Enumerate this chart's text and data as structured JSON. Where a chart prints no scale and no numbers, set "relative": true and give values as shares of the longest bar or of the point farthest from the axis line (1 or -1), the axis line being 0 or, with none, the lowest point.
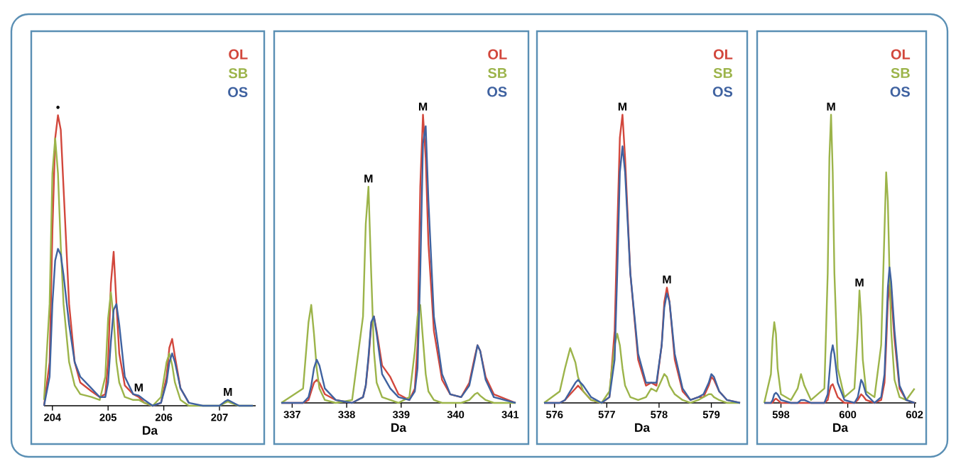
{
  "chart_data": [
    {
      "type": "line",
      "relative": true,
      "xlabel": "Da",
      "legend": "top right",
      "xlim": [
        203.85,
        207.65
      ],
      "xticks": [
        204,
        205,
        206,
        207
      ],
      "x": [
        203.85,
        203.95,
        204.0,
        204.05,
        204.1,
        204.15,
        204.2,
        204.3,
        204.4,
        204.5,
        204.7,
        204.85,
        204.95,
        205.0,
        205.05,
        205.1,
        205.15,
        205.2,
        205.3,
        205.45,
        205.55,
        205.65,
        205.8,
        205.95,
        206.05,
        206.1,
        206.15,
        206.2,
        206.3,
        206.45,
        206.7,
        207.0,
        207.1,
        207.15,
        207.2,
        207.35,
        207.6
      ],
      "series": [
        {
          "name": "OL",
          "color": "#d2473c",
          "values": [
            0,
            0.15,
            0.6,
            0.92,
            1.0,
            0.95,
            0.75,
            0.35,
            0.15,
            0.08,
            0.05,
            0.03,
            0.04,
            0.15,
            0.42,
            0.53,
            0.35,
            0.18,
            0.07,
            0.04,
            0.03,
            0.01,
            0,
            0.01,
            0.1,
            0.2,
            0.23,
            0.17,
            0.06,
            0.01,
            null,
            null,
            null,
            null,
            null,
            null,
            null
          ]
        },
        {
          "name": "SB",
          "color": "#9cb44a",
          "values": [
            0.02,
            0.35,
            0.8,
            0.92,
            0.8,
            0.55,
            0.35,
            0.15,
            0.07,
            0.04,
            0.03,
            0.02,
            0.1,
            0.3,
            0.39,
            0.3,
            0.15,
            0.08,
            0.03,
            0.02,
            0.02,
            0.01,
            0,
            0.03,
            0.15,
            0.18,
            0.14,
            0.08,
            0.02,
            0,
            0,
            0,
            0.01,
            0.015,
            0.01,
            0,
            0
          ]
        },
        {
          "name": "OS",
          "color": "#3f62a0",
          "values": [
            0,
            0.1,
            0.35,
            0.5,
            0.54,
            0.52,
            0.45,
            0.28,
            0.15,
            0.1,
            0.06,
            0.03,
            0.03,
            0.08,
            0.22,
            0.33,
            0.35,
            0.28,
            0.1,
            0.04,
            0.035,
            0.02,
            0,
            0.01,
            0.08,
            0.15,
            0.18,
            0.15,
            0.06,
            0.01,
            0,
            0,
            0.015,
            0.02,
            0.015,
            0,
            0
          ]
        }
      ],
      "annotations": [
        {
          "text": "•",
          "x": 204.1,
          "y": 1.0
        },
        {
          "text": "M",
          "x": 205.55,
          "y": 0.035
        },
        {
          "text": "M",
          "x": 207.15,
          "y": 0.02
        }
      ]
    },
    {
      "type": "line",
      "relative": true,
      "xlabel": "Da",
      "legend": "top right",
      "xlim": [
        336.8,
        341.1
      ],
      "xticks": [
        337,
        338,
        339,
        340,
        341
      ],
      "x": [
        336.8,
        337.2,
        337.3,
        337.35,
        337.4,
        337.45,
        337.5,
        337.6,
        337.8,
        338.1,
        338.3,
        338.35,
        338.4,
        338.45,
        338.5,
        338.55,
        338.65,
        338.8,
        338.95,
        339.15,
        339.25,
        339.3,
        339.35,
        339.4,
        339.45,
        339.5,
        339.6,
        339.75,
        339.9,
        340.1,
        340.25,
        340.35,
        340.4,
        340.45,
        340.55,
        340.7,
        341.1
      ],
      "series": [
        {
          "name": "OL",
          "color": "#d2473c",
          "values": [
            0,
            0,
            0.01,
            0.04,
            0.07,
            0.08,
            0.07,
            0.03,
            0.01,
            0,
            0.02,
            0.06,
            0.15,
            0.27,
            0.3,
            0.25,
            0.13,
            0.09,
            0.03,
            0.01,
            0.05,
            0.2,
            0.75,
            1.0,
            0.85,
            0.55,
            0.25,
            0.08,
            0.03,
            0.02,
            0.07,
            0.16,
            0.2,
            0.18,
            0.09,
            0.03,
            0
          ]
        },
        {
          "name": "SB",
          "color": "#9cb44a",
          "values": [
            0,
            0.05,
            0.28,
            0.34,
            0.24,
            0.12,
            0.05,
            0.01,
            0,
            0.01,
            0.3,
            0.62,
            0.75,
            0.45,
            0.18,
            0.07,
            0.02,
            0.01,
            0,
            0.02,
            0.18,
            0.3,
            0.34,
            0.22,
            0.1,
            0.04,
            0.01,
            0,
            0,
            0,
            0.01,
            0.03,
            0.035,
            0.025,
            0.01,
            0,
            0
          ]
        },
        {
          "name": "OS",
          "color": "#3f62a0",
          "values": [
            0,
            0,
            0.02,
            0.06,
            0.12,
            0.15,
            0.13,
            0.05,
            0.01,
            0,
            0.02,
            0.06,
            0.16,
            0.28,
            0.3,
            0.24,
            0.1,
            0.05,
            0.02,
            0.01,
            0.04,
            0.12,
            0.45,
            0.9,
            0.96,
            0.7,
            0.3,
            0.1,
            0.03,
            0.02,
            0.06,
            0.15,
            0.2,
            0.18,
            0.08,
            0.02,
            0
          ]
        }
      ],
      "annotations": [
        {
          "text": "M",
          "x": 338.4,
          "y": 0.75
        },
        {
          "text": "M",
          "x": 339.4,
          "y": 1.0
        }
      ]
    },
    {
      "type": "line",
      "relative": true,
      "xlabel": "Da",
      "legend": "top right",
      "xlim": [
        575.8,
        579.55
      ],
      "xticks": [
        576,
        577,
        578,
        579
      ],
      "x": [
        575.8,
        576.1,
        576.2,
        576.3,
        576.4,
        576.45,
        576.55,
        576.7,
        576.9,
        577.05,
        577.15,
        577.2,
        577.25,
        577.3,
        577.35,
        577.45,
        577.6,
        577.75,
        577.85,
        577.95,
        578.05,
        578.1,
        578.15,
        578.2,
        578.3,
        578.45,
        578.6,
        578.75,
        578.85,
        578.95,
        579.0,
        579.05,
        579.15,
        579.3,
        579.55
      ],
      "series": [
        {
          "name": "OL",
          "color": "#d2473c",
          "values": [
            0,
            0,
            0.01,
            0.03,
            0.05,
            0.06,
            0.04,
            0.01,
            0,
            0.02,
            0.25,
            0.6,
            0.92,
            1.0,
            0.85,
            0.45,
            0.15,
            0.06,
            0.07,
            0.06,
            0.2,
            0.35,
            0.4,
            0.35,
            0.15,
            0.04,
            0.01,
            0.02,
            0.02,
            0.06,
            0.09,
            0.08,
            0.04,
            0.01,
            0
          ]
        },
        {
          "name": "SB",
          "color": "#9cb44a",
          "values": [
            0,
            0.04,
            0.12,
            0.19,
            0.14,
            0.09,
            0.04,
            0.01,
            0,
            0.04,
            0.2,
            0.24,
            0.2,
            0.12,
            0.06,
            0.02,
            0.01,
            0.02,
            0.05,
            0.04,
            0.08,
            0.1,
            0.09,
            0.06,
            0.03,
            0.01,
            0,
            0.01,
            0.02,
            0.03,
            0.03,
            0.02,
            0.01,
            0,
            0
          ]
        },
        {
          "name": "OS",
          "color": "#3f62a0",
          "values": [
            0,
            0,
            0.01,
            0.04,
            0.07,
            0.08,
            0.06,
            0.02,
            0,
            0.02,
            0.15,
            0.45,
            0.8,
            0.89,
            0.8,
            0.45,
            0.17,
            0.07,
            0.07,
            0.07,
            0.2,
            0.33,
            0.38,
            0.35,
            0.17,
            0.05,
            0.01,
            0.02,
            0.03,
            0.07,
            0.1,
            0.09,
            0.04,
            0.01,
            0
          ]
        }
      ],
      "annotations": [
        {
          "text": "M",
          "x": 577.3,
          "y": 1.0
        },
        {
          "text": "M",
          "x": 578.15,
          "y": 0.4
        }
      ]
    },
    {
      "type": "line",
      "relative": true,
      "xlabel": "Da",
      "legend": "top right",
      "xlim": [
        597.5,
        602.05
      ],
      "xticks": [
        598,
        600,
        602
      ],
      "x": [
        597.5,
        597.7,
        597.75,
        597.8,
        597.85,
        597.9,
        598.0,
        598.3,
        598.5,
        598.6,
        598.7,
        598.9,
        599.3,
        599.4,
        599.45,
        599.5,
        599.55,
        599.6,
        599.7,
        599.9,
        600.2,
        600.3,
        600.35,
        600.4,
        600.45,
        600.55,
        600.8,
        601.0,
        601.1,
        601.15,
        601.2,
        601.25,
        601.3,
        601.4,
        601.55,
        601.75,
        602.0
      ],
      "series": [
        {
          "name": "OL",
          "color": "#d2473c",
          "values": [
            0,
            0,
            0,
            0.01,
            0.015,
            0.01,
            0,
            0,
            0,
            0,
            0,
            0,
            0,
            0.01,
            0.04,
            0.06,
            0.065,
            0.05,
            0.02,
            0,
            0,
            0.01,
            0.02,
            0.03,
            0.025,
            0.01,
            0,
            0.01,
            0.07,
            0.2,
            0.35,
            0.41,
            0.38,
            0.22,
            0.05,
            0.01,
            0
          ]
        },
        {
          "name": "SB",
          "color": "#9cb44a",
          "values": [
            0,
            0.1,
            0.22,
            0.28,
            0.24,
            0.12,
            0.03,
            0.01,
            0.05,
            0.1,
            0.06,
            0.01,
            0.05,
            0.45,
            0.85,
            1.0,
            0.8,
            0.45,
            0.12,
            0.02,
            0.05,
            0.25,
            0.39,
            0.3,
            0.15,
            0.04,
            0.02,
            0.2,
            0.6,
            0.8,
            0.7,
            0.45,
            0.25,
            0.08,
            0.02,
            0.01,
            0.05
          ]
        },
        {
          "name": "OS",
          "color": "#3f62a0",
          "values": [
            0,
            0,
            0.01,
            0.03,
            0.035,
            0.03,
            0.01,
            0,
            0,
            0.01,
            0.01,
            0,
            0,
            0.03,
            0.1,
            0.17,
            0.2,
            0.17,
            0.07,
            0.01,
            0,
            0.02,
            0.05,
            0.08,
            0.07,
            0.03,
            0,
            0.02,
            0.1,
            0.25,
            0.4,
            0.47,
            0.42,
            0.25,
            0.06,
            0.01,
            0
          ]
        }
      ],
      "annotations": [
        {
          "text": "M",
          "x": 599.5,
          "y": 1.0
        },
        {
          "text": "M",
          "x": 600.35,
          "y": 0.39
        }
      ]
    }
  ]
}
